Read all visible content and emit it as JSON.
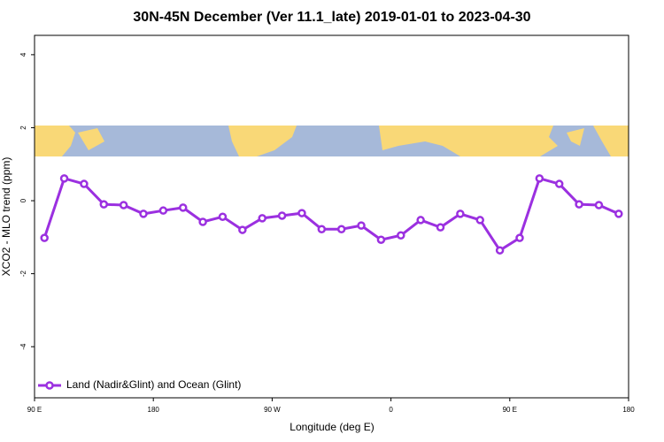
{
  "chart_data": {
    "type": "line",
    "title": "30N-45N December (Ver 11.1_late)   2019-01-01 to 2023-04-30",
    "x_label": "Longitude (deg E)",
    "y_label": "XCO2 - MLO trend (ppm)",
    "x": [
      97.5,
      112.5,
      127.5,
      142.5,
      157.5,
      172.5,
      187.5,
      202.5,
      217.5,
      232.5,
      247.5,
      262.5,
      277.5,
      292.5,
      307.5,
      322.5,
      337.5,
      352.5,
      367.5,
      382.5,
      397.5,
      412.5,
      427.5,
      442.5,
      457.5,
      472.5,
      487.5,
      502.5,
      517.5,
      532.5
    ],
    "series": [
      {
        "name": "Land (Nadir&Glint) and Ocean (Glint)",
        "color": "#9b30e0",
        "values": [
          -1.02,
          0.61,
          0.46,
          -0.1,
          -0.12,
          -0.36,
          -0.27,
          -0.19,
          -0.58,
          -0.44,
          -0.8,
          -0.48,
          -0.41,
          -0.34,
          -0.78,
          -0.78,
          -0.68,
          -1.07,
          -0.95,
          -0.53,
          -0.73,
          -0.36,
          -0.53,
          -1.36,
          -1.02,
          0.61,
          0.46,
          -0.1,
          -0.12,
          -0.36
        ]
      }
    ],
    "xlim": [
      90,
      540
    ],
    "xticks": [
      {
        "value": 90,
        "label": "90 E"
      },
      {
        "value": 180,
        "label": "180"
      },
      {
        "value": 270,
        "label": "90 W"
      },
      {
        "value": 360,
        "label": "0"
      },
      {
        "value": 450,
        "label": "90 E"
      },
      {
        "value": 540,
        "label": "180"
      }
    ],
    "ylim": [
      -5.4,
      4.53
    ],
    "yticks": [
      -4,
      -2,
      0,
      2,
      4
    ],
    "legend": "bottom-left"
  }
}
